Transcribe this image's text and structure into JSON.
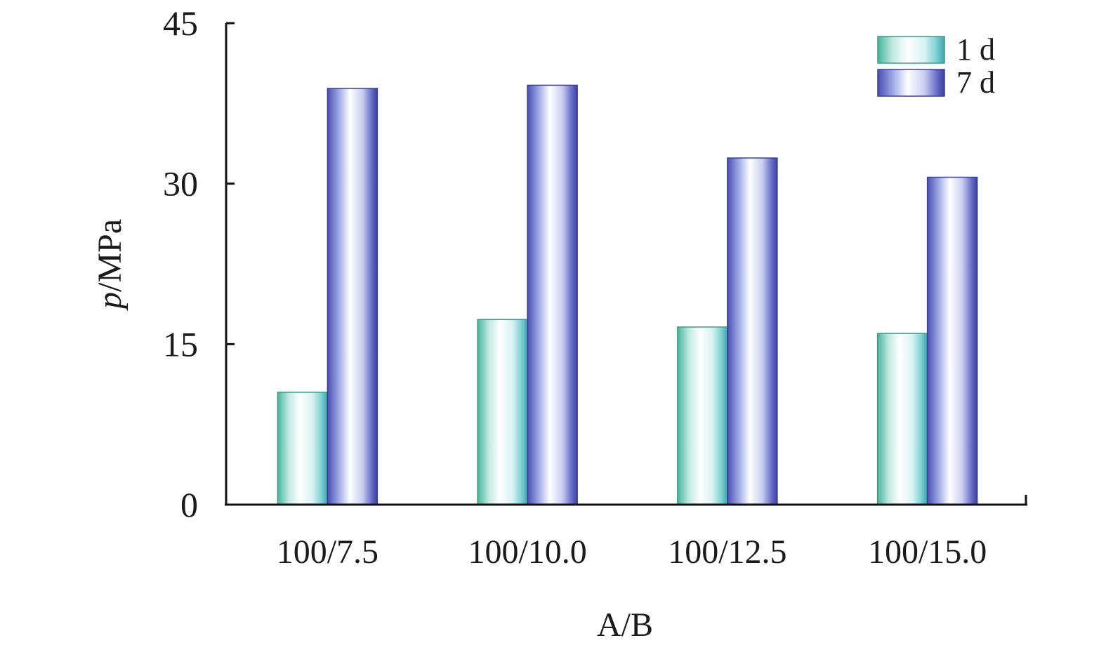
{
  "chart_data": {
    "type": "bar",
    "title": "",
    "xlabel": "A/B",
    "ylabel_italic": "p",
    "ylabel_rest": "/MPa",
    "categories": [
      "100/7.5",
      "100/10.0",
      "100/12.5",
      "100/15.0"
    ],
    "series": [
      {
        "name": "1 d",
        "values": [
          10.5,
          17.3,
          16.6,
          16.0
        ]
      },
      {
        "name": "7 d",
        "values": [
          38.9,
          39.2,
          32.4,
          30.6
        ]
      }
    ],
    "ylim": [
      0,
      45
    ],
    "yticks": [
      "0",
      "15",
      "30",
      "45"
    ],
    "grid": false,
    "legend_position": "top-right",
    "colors": {
      "1 d": "#4fb8a0",
      "7 d": "#4a4fb0"
    }
  }
}
